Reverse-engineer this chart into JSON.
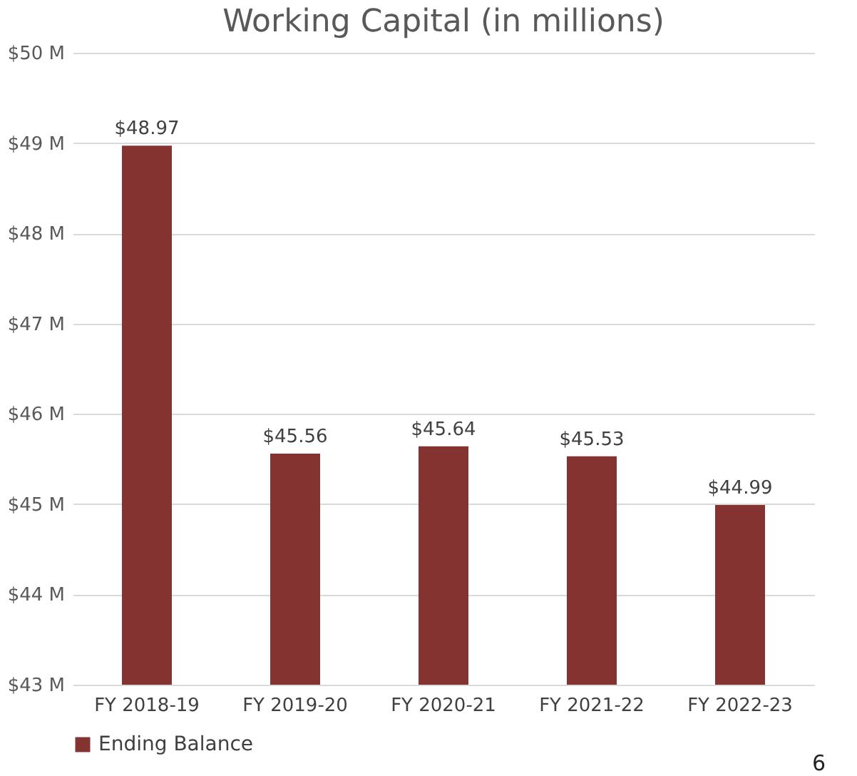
{
  "chart_data": {
    "type": "bar",
    "title": "Working Capital (in millions)",
    "categories": [
      "FY 2018-19",
      "FY 2019-20",
      "FY 2020-21",
      "FY 2021-22",
      "FY 2022-23"
    ],
    "series": [
      {
        "name": "Ending Balance",
        "color": "#843330",
        "values": [
          48.97,
          45.56,
          45.64,
          45.53,
          44.99
        ],
        "value_labels": [
          "$48.97",
          "$45.56",
          "$45.64",
          "$45.53",
          "$44.99"
        ]
      }
    ],
    "ylim": [
      43,
      50
    ],
    "yticks": [
      {
        "value": 43,
        "label": "$43 M"
      },
      {
        "value": 44,
        "label": "$44 M"
      },
      {
        "value": 45,
        "label": "$45 M"
      },
      {
        "value": 46,
        "label": "$46 M"
      },
      {
        "value": 47,
        "label": "$47 M"
      },
      {
        "value": 48,
        "label": "$48 M"
      },
      {
        "value": 49,
        "label": "$49 M"
      },
      {
        "value": 50,
        "label": "$50 M"
      }
    ],
    "grid": "y",
    "legend": "bottom",
    "annotations": [
      "6"
    ]
  }
}
